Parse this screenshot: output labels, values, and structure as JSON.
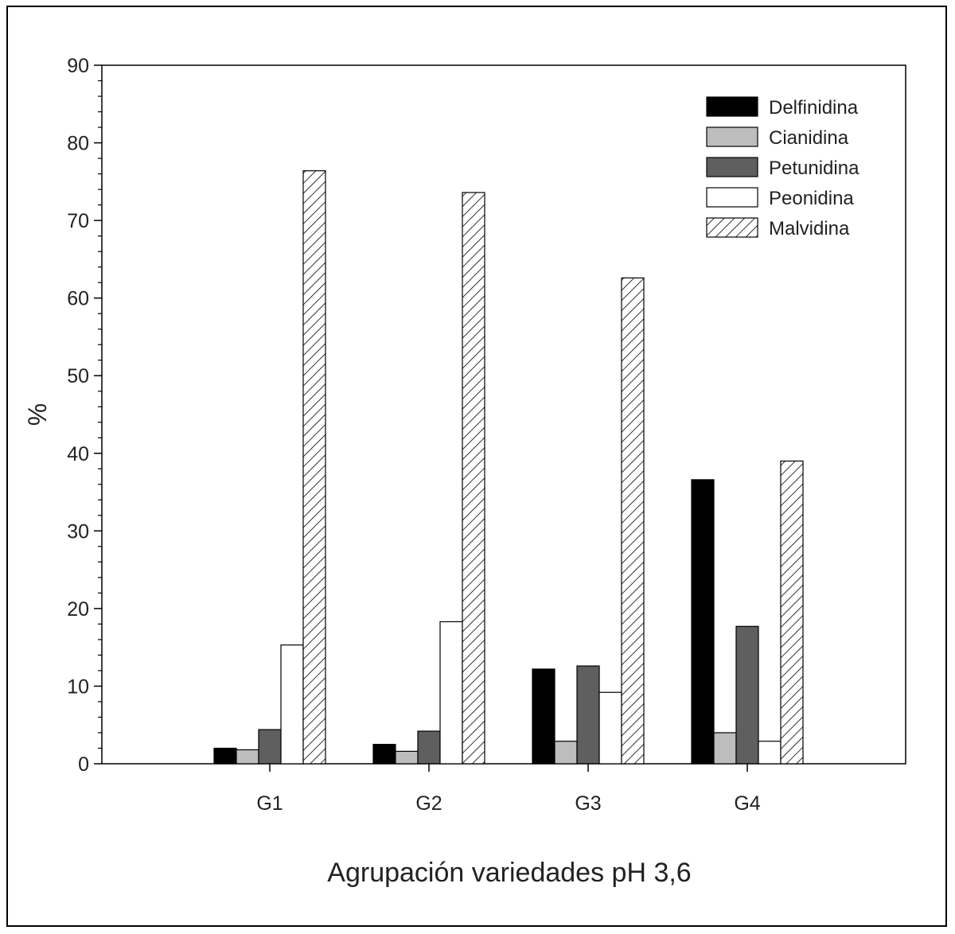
{
  "chart_data": {
    "type": "bar",
    "title": "",
    "xlabel": "Agrupación variedades pH 3,6",
    "ylabel": "%",
    "categories": [
      "G1",
      "G2",
      "G3",
      "G4"
    ],
    "ylim": [
      0,
      90
    ],
    "yticks": [
      0,
      10,
      20,
      30,
      40,
      50,
      60,
      70,
      80,
      90
    ],
    "grid": false,
    "legend_position": "top-right",
    "series": [
      {
        "name": "Delfinidina",
        "values": [
          2.0,
          2.5,
          12.2,
          36.6
        ],
        "color": "#000000",
        "pattern": "solid"
      },
      {
        "name": "Cianidina",
        "values": [
          1.8,
          1.6,
          2.9,
          4.0
        ],
        "color": "#bdbdbd",
        "pattern": "solid"
      },
      {
        "name": "Petunidina",
        "values": [
          4.4,
          4.2,
          12.6,
          17.7
        ],
        "color": "#5f5f5f",
        "pattern": "solid"
      },
      {
        "name": "Peonidina",
        "values": [
          15.3,
          18.3,
          9.2,
          2.9
        ],
        "color": "#ffffff",
        "pattern": "solid"
      },
      {
        "name": "Malvidina",
        "values": [
          76.4,
          73.6,
          62.6,
          39.0
        ],
        "color": "#ffffff",
        "pattern": "hatch"
      }
    ]
  }
}
